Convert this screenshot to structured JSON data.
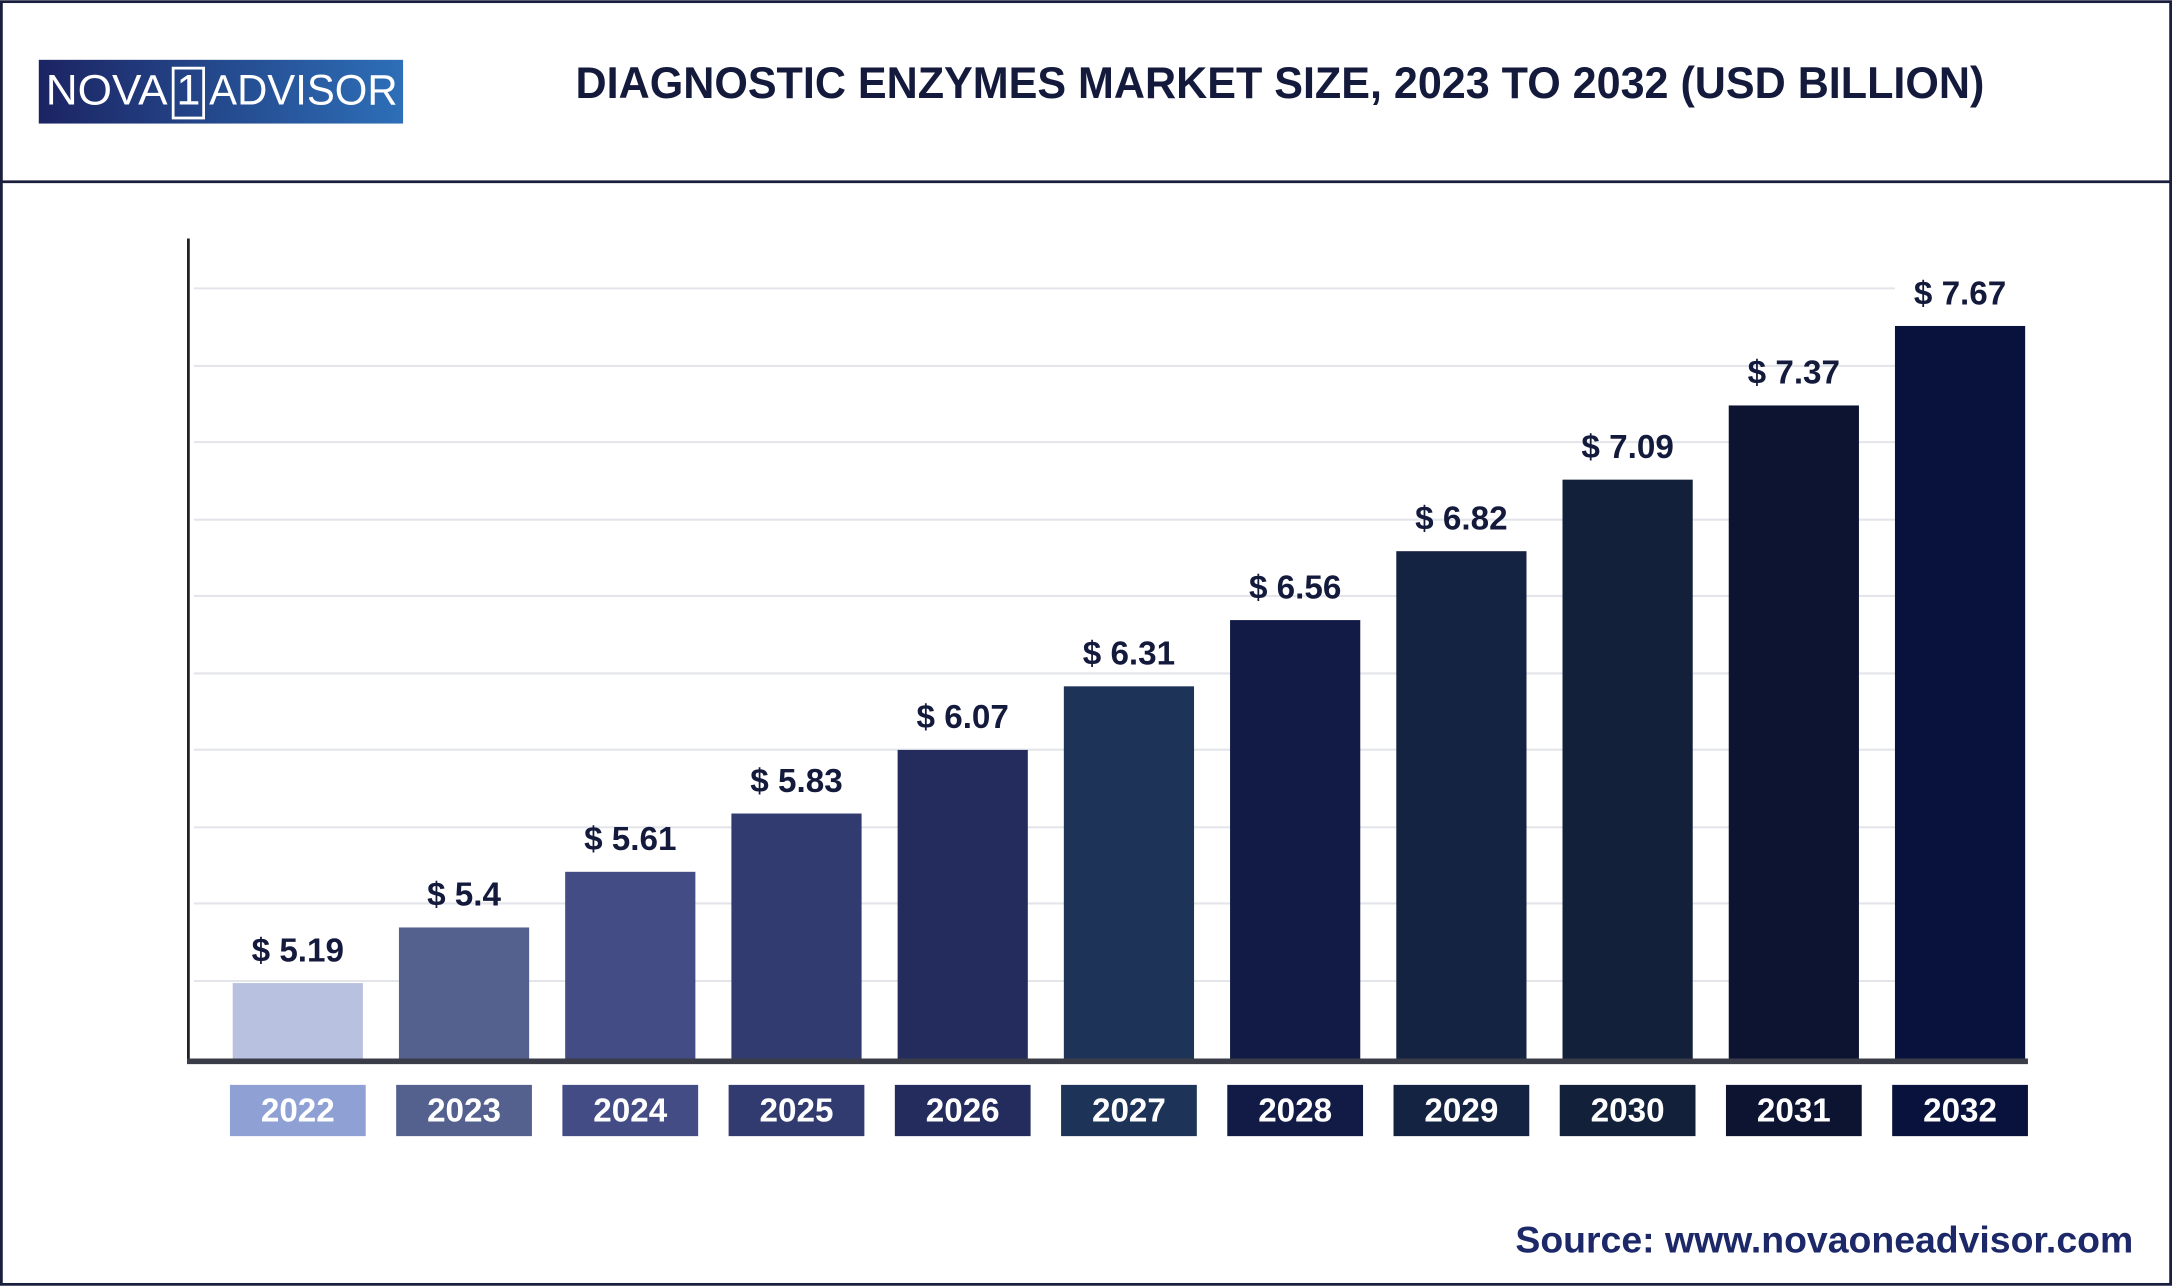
{
  "logo": {
    "left": "NOVA",
    "digit": "1",
    "right": "ADVISOR"
  },
  "chart_data": {
    "type": "bar",
    "title": "DIAGNOSTIC ENZYMES MARKET SIZE, 2023 TO 2032 (USD BILLION)",
    "source": "Source: www.novaoneadvisor.com",
    "categories": [
      "2022",
      "2023",
      "2024",
      "2025",
      "2026",
      "2027",
      "2028",
      "2029",
      "2030",
      "2031",
      "2032"
    ],
    "values": [
      5.19,
      5.4,
      5.61,
      5.83,
      6.07,
      6.31,
      6.56,
      6.82,
      7.09,
      7.37,
      7.67
    ],
    "value_labels": [
      "$ 5.19",
      "$ 5.4",
      "$ 5.61",
      "$ 5.83",
      "$ 6.07",
      "$ 6.31",
      "$ 6.56",
      "$ 6.82",
      "$ 7.09",
      "$ 7.37",
      "$ 7.67"
    ],
    "colors": [
      "#b8c2e0",
      "#54618f",
      "#434c85",
      "#313b70",
      "#242c5e",
      "#1e3358",
      "#111b45",
      "#152343",
      "#12203a",
      "#0c1432",
      "#08123d"
    ],
    "label_colors": [
      "#8ea0d4",
      "#54618f",
      "#434c85",
      "#313b70",
      "#242c5e",
      "#1e3358",
      "#111b45",
      "#152343",
      "#12203a",
      "#0c1432",
      "#08123d"
    ],
    "ylim": [
      4.9,
      8.0
    ]
  }
}
